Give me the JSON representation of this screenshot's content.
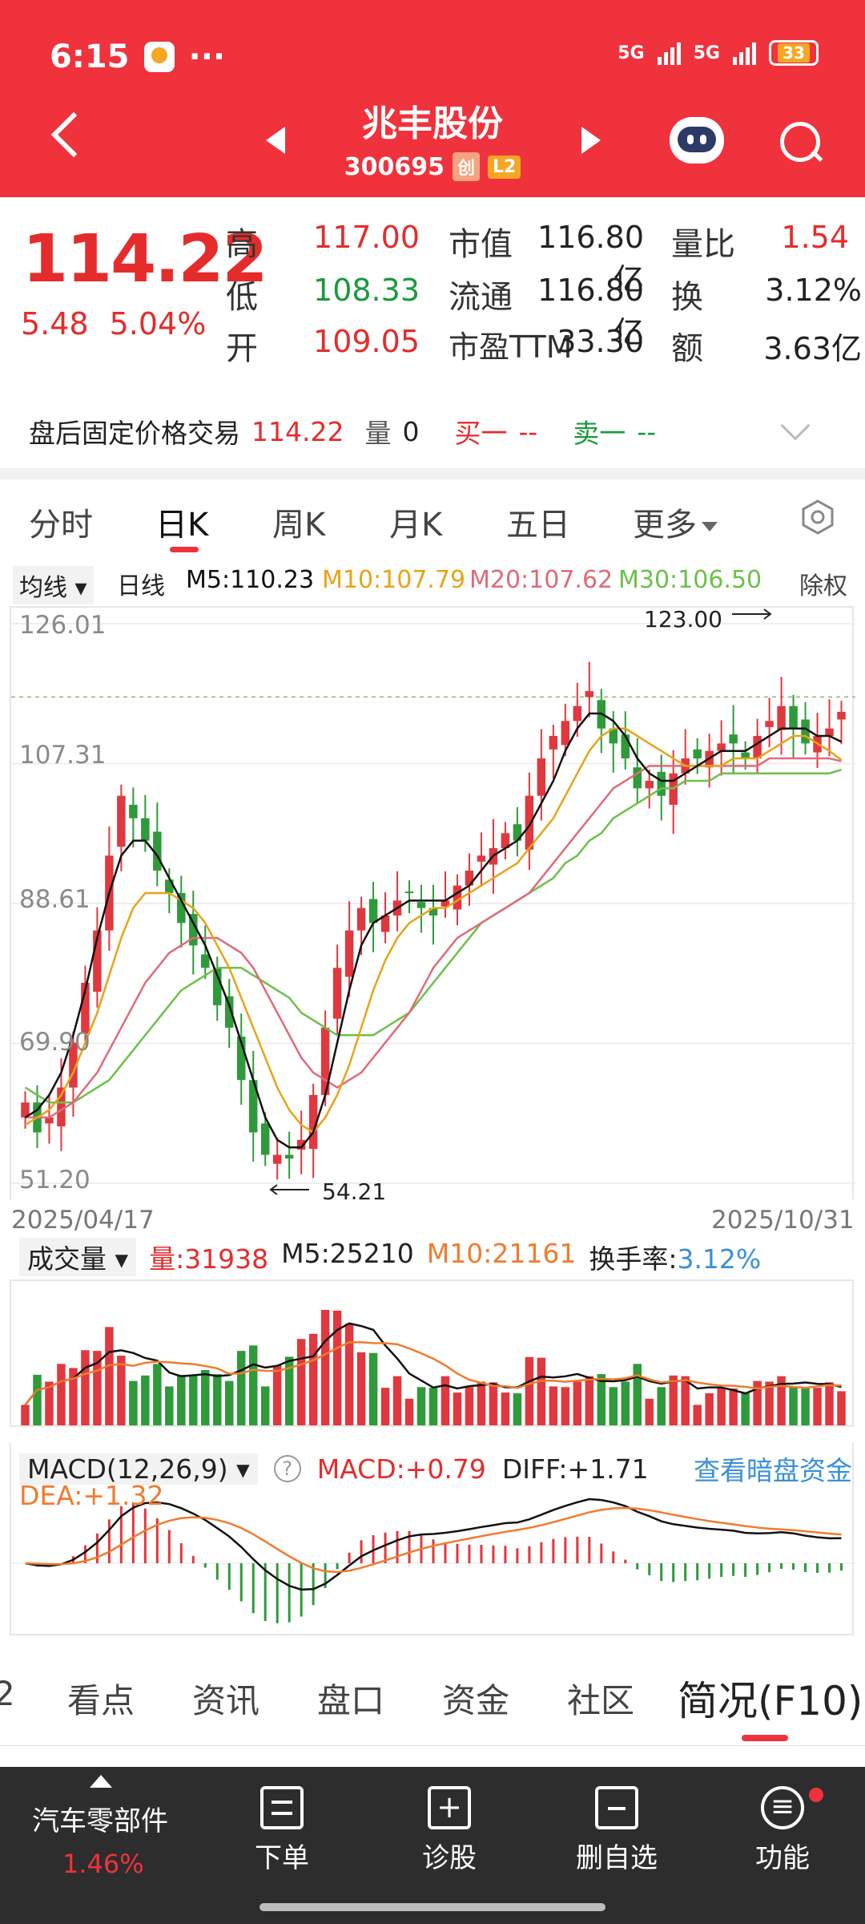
{
  "status_bar": {
    "time": "6:15",
    "dots": "···",
    "net1": "5G",
    "net2": "5G",
    "battery": "33"
  },
  "header": {
    "name": "兆丰股份",
    "code": "300695",
    "tag_board": "创",
    "tag_level": "L2"
  },
  "quote": {
    "price": "114.22",
    "change": "5.48",
    "change_pct": "5.04%",
    "rows": [
      {
        "l1": "高",
        "v1": "117.00",
        "c1": "red",
        "l2": "市值",
        "v2": "116.80亿",
        "l3": "量比",
        "v3": "1.54",
        "c3": "red"
      },
      {
        "l1": "低",
        "v1": "108.33",
        "c1": "green",
        "l2": "流通",
        "v2": "116.80亿",
        "l3": "换",
        "v3": "3.12%",
        "c3": "dark"
      },
      {
        "l1": "开",
        "v1": "109.05",
        "c1": "red",
        "l2": "市盈TTM",
        "v2": "33.30",
        "l3": "额",
        "v3": "3.63亿",
        "c3": "dark"
      }
    ]
  },
  "after_hours": {
    "label": "盘后固定价格交易",
    "price": "114.22",
    "vol_label": "量",
    "vol": "0",
    "buy": "买一",
    "buy_val": "--",
    "sell": "卖一",
    "sell_val": "--"
  },
  "tabs": [
    "分时",
    "日K",
    "周K",
    "月K",
    "五日",
    "更多"
  ],
  "ma": {
    "selector": "均线",
    "period": "日线",
    "m5": "M5:110.23",
    "m10": "M10:107.79",
    "m20": "M20:107.62",
    "m30": "M30:106.50",
    "right": "除权"
  },
  "axis": {
    "y1": "126.01",
    "y2": "107.31",
    "y3": "88.61",
    "y4": "69.90",
    "y5": "51.20",
    "date_start": "2025/04/17",
    "date_end": "2025/10/31",
    "high_mark": "123.00",
    "low_mark": "54.21"
  },
  "volume": {
    "selector": "成交量",
    "vol": "量:31938",
    "m5": "M5:25210",
    "m10": "M10:21161",
    "turnover_label": "换手率:",
    "turnover": "3.12%"
  },
  "macd": {
    "selector": "MACD(12,26,9)",
    "help": "?",
    "macd": "MACD:+0.79",
    "diff": "DIFF:+1.71",
    "dea": "DEA:+1.32",
    "link": "查看暗盘资金"
  },
  "bottom_tabs": [
    "2",
    "看点",
    "资讯",
    "盘口",
    "资金",
    "社区",
    "简况(F10)"
  ],
  "bottom_nav": {
    "sector": "汽车零部件",
    "sector_pct": "1.46%",
    "items": [
      "下单",
      "诊股",
      "删自选",
      "功能"
    ]
  },
  "colors": {
    "red": "#f0323c",
    "up": "#e52c2c",
    "down": "#1a9a3a",
    "m5": "#111111",
    "m10": "#e8a317",
    "m20": "#e06a7a",
    "m30": "#6cc04a"
  },
  "chart_data": {
    "type": "candlestick",
    "x_range": [
      "2025/04/17",
      "2025/10/31"
    ],
    "ylim": [
      51.2,
      126.01
    ],
    "y_ticks": [
      126.01,
      107.31,
      88.61,
      69.9,
      51.2
    ],
    "annotations": [
      {
        "text": "123.00",
        "kind": "high"
      },
      {
        "text": "54.21",
        "kind": "low"
      }
    ],
    "close_approx": [
      62,
      58,
      60,
      64,
      70,
      78,
      85,
      95,
      103,
      100,
      97,
      93,
      90,
      86,
      83,
      80,
      75,
      72,
      65,
      58,
      55,
      55,
      54.5,
      57,
      63,
      72,
      80,
      85,
      88,
      86,
      87,
      89,
      90,
      88,
      87,
      89,
      91,
      93,
      95,
      96,
      98,
      97,
      103,
      108,
      111,
      113,
      115,
      117,
      112,
      110,
      108,
      104,
      105,
      103,
      106,
      108,
      108,
      109,
      110,
      110,
      108,
      111,
      113,
      115,
      112,
      110,
      111,
      112,
      114.22
    ],
    "ma5": [
      60,
      61,
      63,
      66,
      71,
      77,
      84,
      90,
      95,
      97,
      97,
      95,
      92,
      89,
      86,
      83,
      79,
      75,
      70,
      65,
      60,
      57,
      56,
      56,
      58,
      63,
      70,
      77,
      83,
      86,
      87,
      88,
      89,
      89,
      89,
      89,
      90,
      91,
      93,
      95,
      96,
      97,
      99,
      102,
      105,
      109,
      112,
      114,
      114,
      113,
      111,
      108,
      106,
      105,
      105,
      106,
      107,
      108,
      109,
      109,
      109,
      110,
      111,
      112,
      112,
      112,
      111,
      111,
      110.23
    ],
    "ma10": [
      59,
      60,
      61,
      63,
      66,
      70,
      74,
      79,
      84,
      88,
      90,
      90,
      90,
      89,
      88,
      86,
      83,
      80,
      76,
      72,
      68,
      64,
      61,
      59,
      58,
      60,
      63,
      67,
      72,
      77,
      81,
      84,
      86,
      87,
      88,
      88,
      89,
      90,
      91,
      92,
      93,
      94,
      96,
      98,
      100,
      103,
      106,
      109,
      111,
      112,
      112,
      111,
      110,
      109,
      108,
      107,
      107,
      107,
      107,
      108,
      108,
      108,
      109,
      110,
      111,
      111,
      110,
      109,
      107.79
    ],
    "ma20": [
      60,
      60,
      60,
      61,
      62,
      64,
      66,
      69,
      72,
      75,
      78,
      80,
      82,
      83,
      84,
      84,
      84,
      83,
      82,
      80,
      77,
      74,
      71,
      68,
      66,
      65,
      64,
      65,
      66,
      68,
      70,
      72,
      74,
      77,
      80,
      82,
      84,
      85,
      86,
      87,
      88,
      89,
      90,
      92,
      94,
      96,
      98,
      100,
      102,
      104,
      105,
      106,
      107,
      107,
      107,
      107,
      107,
      107,
      107,
      107,
      107,
      107,
      108,
      108,
      108,
      108,
      108,
      108,
      107.62
    ],
    "ma30": [
      64,
      63,
      62,
      62,
      62,
      63,
      64,
      65,
      67,
      69,
      71,
      73,
      75,
      77,
      78,
      79,
      80,
      80,
      80,
      79,
      78,
      77,
      76,
      74,
      73,
      72,
      71,
      71,
      71,
      71,
      72,
      73,
      74,
      76,
      78,
      80,
      82,
      84,
      86,
      87,
      88,
      89,
      90,
      91,
      92,
      94,
      95,
      97,
      98,
      100,
      101,
      102,
      103,
      104,
      104,
      105,
      105,
      105,
      106,
      106,
      106,
      106,
      106,
      106,
      106,
      106,
      106,
      106,
      106.5
    ]
  }
}
